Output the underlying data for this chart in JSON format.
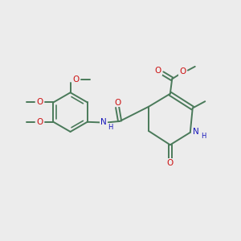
{
  "bg_color": "#ececec",
  "bond_color": "#4a7a5a",
  "bond_width": 1.4,
  "text_colors": {
    "O": "#cc1010",
    "N": "#1818bb",
    "C": "#4a7a5a",
    "H": "#1818bb"
  },
  "font_size_atom": 7.5,
  "font_size_me": 6.8
}
